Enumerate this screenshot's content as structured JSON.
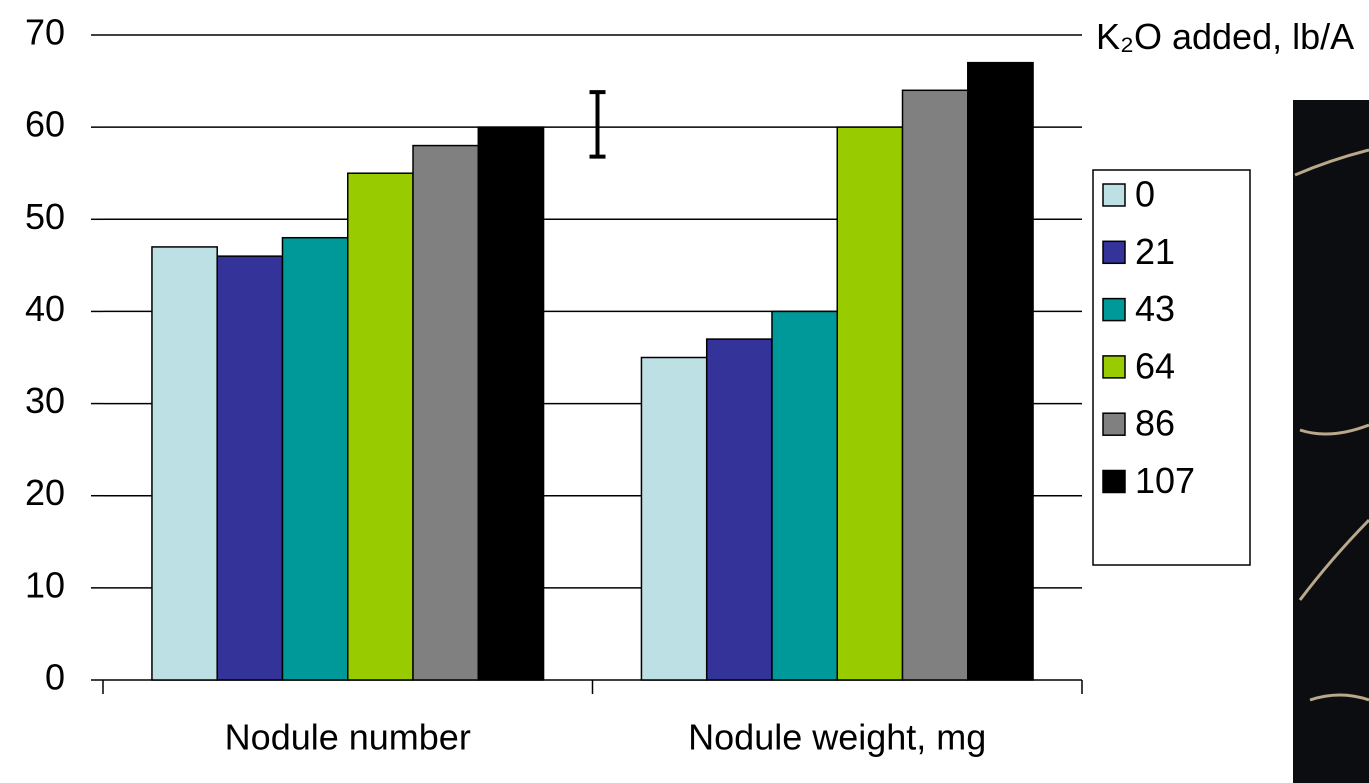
{
  "chart_data": {
    "type": "bar",
    "categories": [
      "Nodule number",
      "Nodule weight, mg"
    ],
    "legend_title": "K₂O added, lb/A",
    "series": [
      {
        "name": "0",
        "color": "#bde0e4",
        "values": [
          47,
          35
        ]
      },
      {
        "name": "21",
        "color": "#333399",
        "values": [
          46,
          37
        ]
      },
      {
        "name": "43",
        "color": "#009999",
        "values": [
          48,
          40
        ]
      },
      {
        "name": "64",
        "color": "#99cc00",
        "values": [
          55,
          60
        ]
      },
      {
        "name": "86",
        "color": "#808080",
        "values": [
          58,
          64
        ]
      },
      {
        "name": "107",
        "color": "#000000",
        "values": [
          60,
          67
        ]
      }
    ],
    "error_bar": {
      "value": 60.3,
      "error": 3.5
    },
    "ylim": [
      0,
      70
    ],
    "yticks": [
      0,
      10,
      20,
      30,
      40,
      50,
      60,
      70
    ],
    "grid": true
  }
}
